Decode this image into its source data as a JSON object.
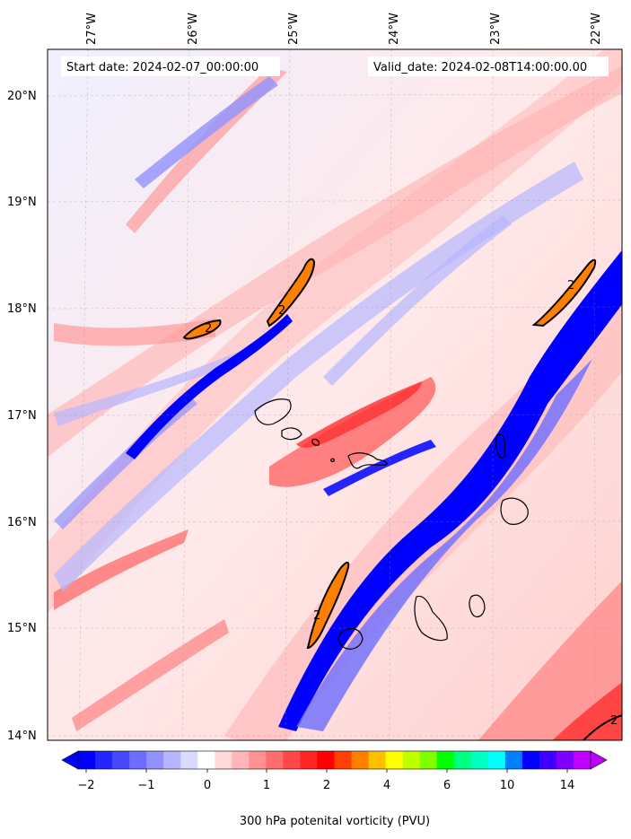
{
  "header": {
    "start_date": "Start date: 2024-02-07_00:00:00",
    "valid_date": "Valid_date: 2024-02-08T14:00:00.00"
  },
  "map": {
    "lon_labels": [
      "27°W",
      "26°W",
      "25°W",
      "24°W",
      "23°W",
      "22°W"
    ],
    "lat_labels": [
      "20°N",
      "19°N",
      "18°N",
      "17°N",
      "16°N",
      "15°N",
      "14°N"
    ],
    "contour_label": "2"
  },
  "colorbar": {
    "ticks": [
      "−2",
      "−1",
      "0",
      "1",
      "2",
      "4",
      "6",
      "10",
      "14"
    ],
    "label": "300 hPa potenital vorticity (PVU)",
    "colors": [
      "#0000ff",
      "#2424ff",
      "#4848ff",
      "#6d6dff",
      "#9191ff",
      "#b6b6ff",
      "#dadaff",
      "#ffffff",
      "#ffdada",
      "#ffb6b6",
      "#ff9191",
      "#ff6d6d",
      "#ff4848",
      "#ff2424",
      "#ff0000",
      "#ff4000",
      "#ff8000",
      "#ffc000",
      "#ffff00",
      "#c0ff00",
      "#80ff00",
      "#00ff00",
      "#00ff80",
      "#00ffc0",
      "#00ffff",
      "#0080ff",
      "#0000ff",
      "#4000ff",
      "#8000ff",
      "#c000ff"
    ]
  }
}
